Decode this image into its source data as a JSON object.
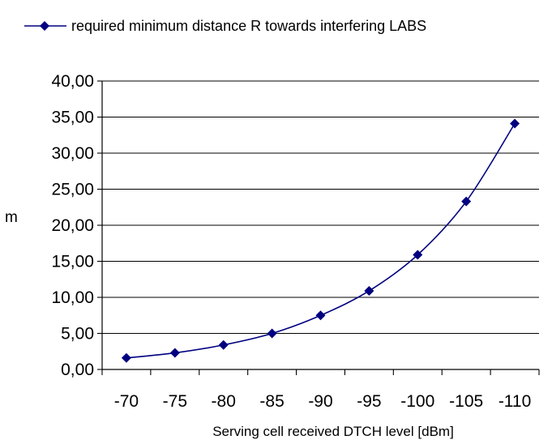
{
  "chart_data": {
    "type": "line",
    "title": "",
    "xlabel": "Serving cell received DTCH level [dBm]",
    "ylabel": "m",
    "categories": [
      "-70",
      "-75",
      "-80",
      "-85",
      "-90",
      "-95",
      "-100",
      "-105",
      "-110"
    ],
    "series": [
      {
        "name": "required minimum distance R towards interfering LABS",
        "values": [
          1.6,
          2.3,
          3.4,
          5.0,
          7.5,
          10.9,
          15.9,
          23.3,
          34.1
        ],
        "color": "#000080",
        "marker": "diamond"
      }
    ],
    "y_ticks": [
      "0,00",
      "5,00",
      "10,00",
      "15,00",
      "20,00",
      "25,00",
      "30,00",
      "35,00",
      "40,00"
    ],
    "ylim": [
      0,
      40
    ],
    "y_step": 5,
    "grid": "horizontal",
    "legend_position": "top"
  }
}
